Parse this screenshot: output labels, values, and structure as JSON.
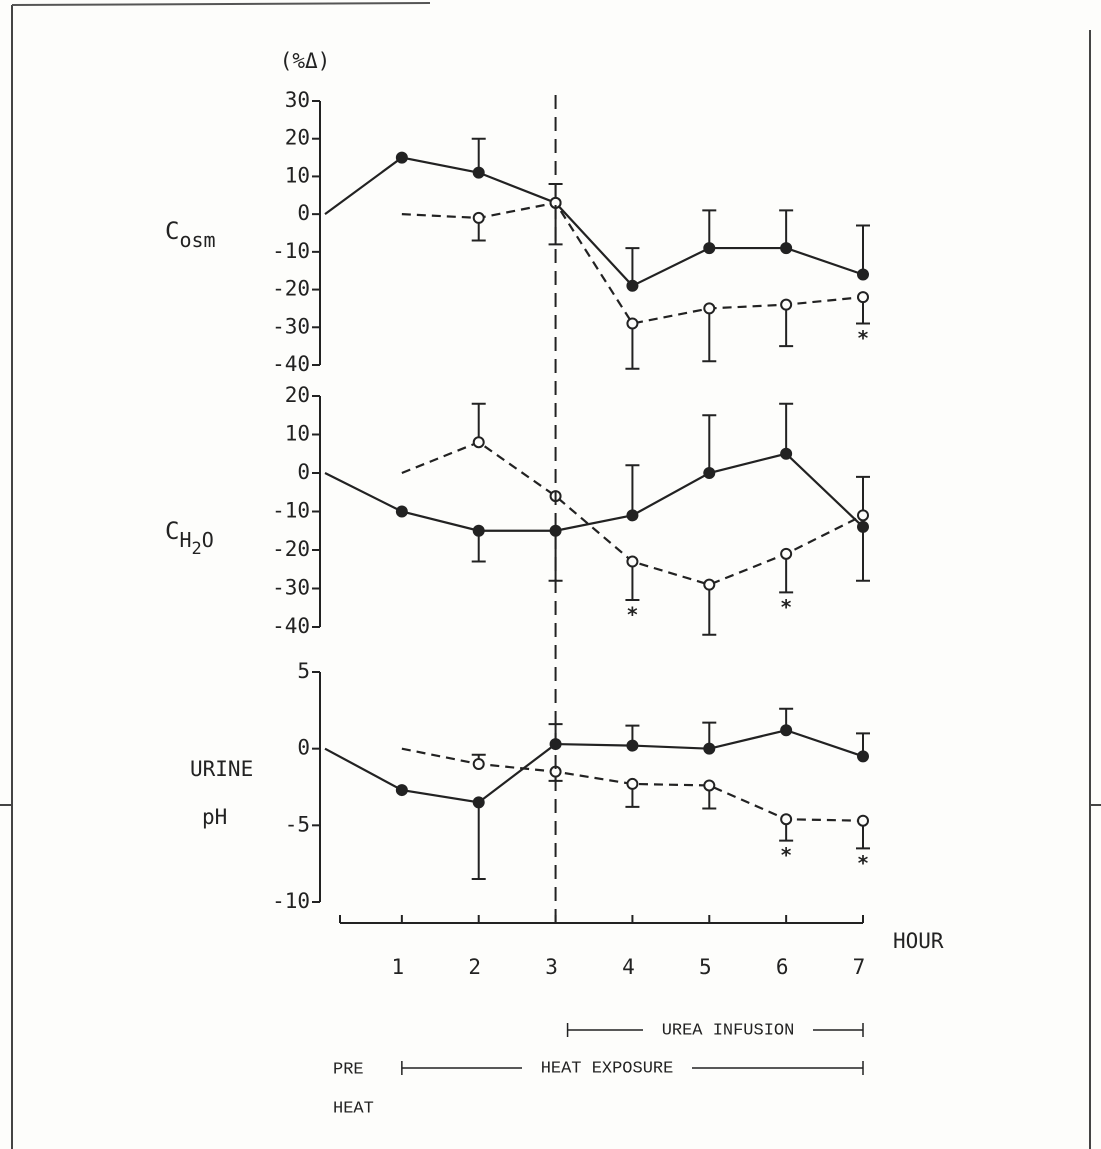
{
  "chart_data": [
    {
      "type": "line",
      "unit_label": "(%Δ)",
      "ylabel": [
        "C",
        "osm"
      ],
      "ylim": [
        -40,
        30
      ],
      "yticks": [
        30,
        20,
        10,
        0,
        -10,
        -20,
        -30,
        -40
      ],
      "x": [
        0,
        1,
        2,
        3,
        4,
        5,
        6,
        7
      ],
      "series": [
        {
          "color": "#222222",
          "style": "solid",
          "marker": "filled",
          "values": [
            0,
            15,
            11,
            3,
            -19,
            -9,
            -9,
            -16
          ],
          "errors_up": [
            null,
            null,
            9,
            5,
            10,
            10,
            10,
            13
          ],
          "errors_down": [
            null,
            null,
            null,
            null,
            null,
            null,
            null,
            null
          ],
          "stars": [
            null,
            null,
            null,
            null,
            null,
            null,
            null,
            null
          ]
        },
        {
          "color": "#222222",
          "style": "dashed",
          "marker": "open",
          "values": [
            null,
            0,
            -1,
            3,
            -29,
            -25,
            -24,
            -22
          ],
          "errors_up": [
            null,
            null,
            null,
            null,
            null,
            null,
            null,
            null
          ],
          "errors_down": [
            null,
            null,
            6,
            11,
            12,
            14,
            11,
            7
          ],
          "stars": [
            null,
            null,
            null,
            null,
            null,
            null,
            null,
            "*"
          ]
        }
      ]
    },
    {
      "type": "line",
      "ylabel": [
        "C",
        "H",
        "2",
        "O"
      ],
      "ylim": [
        -40,
        20
      ],
      "yticks": [
        20,
        10,
        0,
        -10,
        -20,
        -30,
        -40
      ],
      "x": [
        0,
        1,
        2,
        3,
        4,
        5,
        6,
        7
      ],
      "series": [
        {
          "color": "#222222",
          "style": "solid",
          "marker": "filled",
          "values": [
            0,
            -10,
            -15,
            -15,
            -11,
            0,
            5,
            -14
          ],
          "errors_up": [
            null,
            null,
            null,
            null,
            13,
            15,
            13,
            null
          ],
          "errors_down": [
            null,
            null,
            8,
            13,
            null,
            null,
            null,
            14
          ],
          "stars": [
            null,
            null,
            null,
            null,
            null,
            null,
            null,
            null
          ]
        },
        {
          "color": "#222222",
          "style": "dashed",
          "marker": "open",
          "values": [
            null,
            0,
            8,
            -6,
            -23,
            -29,
            -21,
            -11
          ],
          "errors_up": [
            null,
            null,
            10,
            null,
            null,
            null,
            null,
            10
          ],
          "errors_down": [
            null,
            null,
            null,
            null,
            10,
            13,
            10,
            null
          ],
          "stars": [
            null,
            null,
            null,
            null,
            "*",
            null,
            "*",
            null
          ]
        }
      ]
    },
    {
      "type": "line",
      "ylabel": [
        "URINE",
        "pH"
      ],
      "ylim": [
        -10,
        5
      ],
      "yticks": [
        5,
        0,
        -5,
        -10
      ],
      "x": [
        0,
        1,
        2,
        3,
        4,
        5,
        6,
        7
      ],
      "xlim": [
        0,
        7
      ],
      "xticks": [
        1,
        2,
        3,
        4,
        5,
        6,
        7
      ],
      "xlabel": "HOUR",
      "series": [
        {
          "color": "#222222",
          "style": "solid",
          "marker": "filled",
          "values": [
            0,
            -2.7,
            -3.5,
            0.3,
            0.2,
            0,
            1.2,
            -0.5
          ],
          "errors_up": [
            null,
            null,
            null,
            1.3,
            1.3,
            1.7,
            1.4,
            1.5
          ],
          "errors_down": [
            null,
            null,
            5,
            null,
            null,
            null,
            null,
            null
          ],
          "stars": [
            null,
            null,
            null,
            null,
            null,
            null,
            null,
            null
          ]
        },
        {
          "color": "#222222",
          "style": "dashed",
          "marker": "open",
          "values": [
            null,
            0,
            -1,
            -1.5,
            -2.3,
            -2.4,
            -4.6,
            -4.7
          ],
          "errors_up": [
            null,
            null,
            0.6,
            null,
            null,
            null,
            null,
            null
          ],
          "errors_down": [
            null,
            null,
            null,
            0.6,
            1.5,
            1.5,
            1.4,
            1.8
          ],
          "stars": [
            null,
            null,
            null,
            null,
            null,
            null,
            "*",
            "*"
          ]
        }
      ]
    }
  ],
  "annotations": {
    "divider": 3,
    "periods": [
      {
        "label": "UREA INFUSION",
        "start": 3,
        "end": 7
      },
      {
        "label": "HEAT EXPOSURE",
        "start": 1,
        "end": 7
      }
    ],
    "pre_label": [
      "PRE",
      "HEAT"
    ]
  }
}
